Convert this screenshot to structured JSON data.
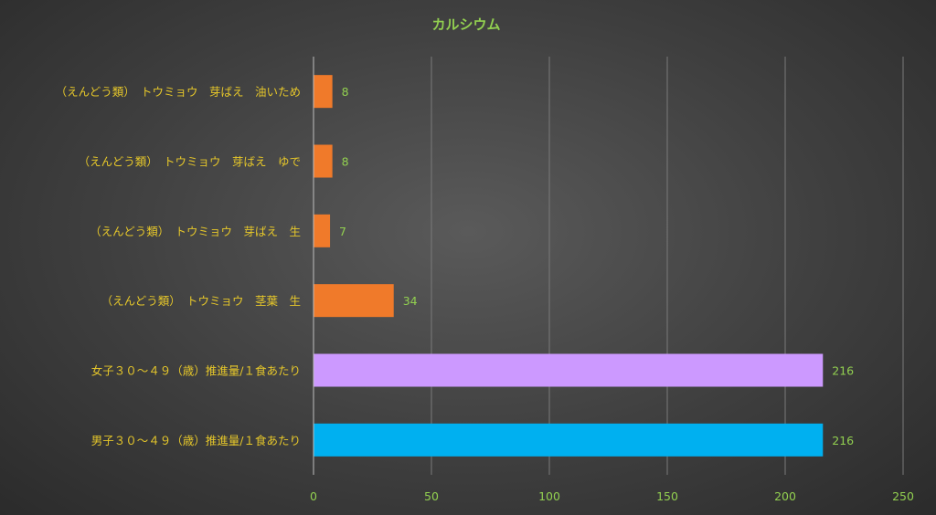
{
  "chart_data": {
    "type": "bar",
    "orientation": "horizontal",
    "title": "カルシウム",
    "categories": [
      "（えんどう類）　トウミョウ　芽ばえ　油いため",
      "（えんどう類）　トウミョウ　芽ばえ　ゆで",
      "（えんどう類）　トウミョウ　芽ばえ　生",
      "（えんどう類）　トウミョウ　茎葉　生",
      "女子３０～４９（歳）推進量/１食あたり",
      "男子３０～４９（歳）推進量/１食あたり"
    ],
    "values": [
      8,
      8,
      7,
      34,
      216,
      216
    ],
    "value_labels": [
      "8",
      "8",
      "7",
      "34",
      "216",
      "216"
    ],
    "bar_colors": [
      "#f07a2a",
      "#f07a2a",
      "#f07a2a",
      "#f07a2a",
      "#cc99ff",
      "#00b0f0"
    ],
    "xlim": [
      0,
      250
    ],
    "xticks": [
      0,
      50,
      100,
      150,
      200,
      250
    ],
    "xtick_labels": [
      "0",
      "50",
      "100",
      "150",
      "200",
      "250"
    ],
    "grid": true
  }
}
